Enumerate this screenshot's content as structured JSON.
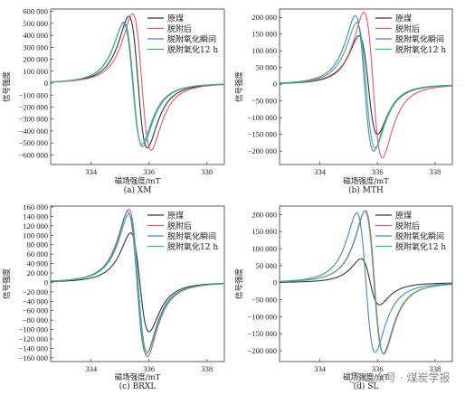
{
  "watermark": "公众号 · 煤炭学报",
  "chart_data": [
    {
      "type": "line",
      "caption": "(a) XM",
      "xlabel": "磁场强度/mT",
      "ylabel": "信号强度",
      "xlim": [
        332.6,
        338.6
      ],
      "ylim": [
        -680000,
        620000
      ],
      "xticks": [
        334,
        336,
        338
      ],
      "yticks": [
        600000,
        500000,
        400000,
        300000,
        200000,
        100000,
        0,
        -100000,
        -200000,
        -300000,
        -400000,
        -500000,
        -600000
      ],
      "ytick_labels": [
        "600 000",
        "500 000",
        "400 000",
        "300 000",
        "200 000",
        "100 000",
        "0",
        "−100 000",
        "−200 000",
        "−300 000",
        "−400 000",
        "−500 000",
        "−600 000"
      ],
      "series": [
        {
          "name": "原煤",
          "color": "#333333",
          "x0": 335.62,
          "peak": 560000,
          "trough": -540000
        },
        {
          "name": "脱附后",
          "color": "#e05a6a",
          "x0": 335.75,
          "peak": 580000,
          "trough": -560000
        },
        {
          "name": "脱附氧化瞬间",
          "color": "#4a84c8",
          "x0": 335.45,
          "peak": 510000,
          "trough": -530000
        },
        {
          "name": "脱附氧化12 h",
          "color": "#3fae8a",
          "x0": 335.43,
          "peak": 500000,
          "trough": -510000
        }
      ],
      "legend": "top-right"
    },
    {
      "type": "line",
      "caption": "(b) MTH",
      "xlabel": "磁场强度/mT",
      "ylabel": "信号强度",
      "xlim": [
        332.6,
        338.6
      ],
      "ylim": [
        -240000,
        225000
      ],
      "xticks": [
        334,
        336,
        338
      ],
      "yticks": [
        200000,
        150000,
        100000,
        50000,
        0,
        -50000,
        -100000,
        -150000,
        -200000
      ],
      "ytick_labels": [
        "200 000",
        "150 000",
        "100 000",
        "50 000",
        "0",
        "−50 000",
        "−100 000",
        "−150 000",
        "−200 000"
      ],
      "series": [
        {
          "name": "原煤",
          "color": "#333333",
          "x0": 335.68,
          "peak": 145000,
          "trough": -150000
        },
        {
          "name": "脱附后",
          "color": "#e05a6a",
          "x0": 335.85,
          "peak": 215000,
          "trough": -220000
        },
        {
          "name": "脱附氧化瞬间",
          "color": "#4a84c8",
          "x0": 335.55,
          "peak": 205000,
          "trough": -200000
        },
        {
          "name": "脱附氧化12 h",
          "color": "#3fae8a",
          "x0": 335.6,
          "peak": 185000,
          "trough": -190000
        }
      ],
      "legend": "top-right"
    },
    {
      "type": "line",
      "caption": "(c) BRXL",
      "xlabel": "磁场强度/mT",
      "ylabel": "信号强度",
      "xlim": [
        332.6,
        338.6
      ],
      "ylim": [
        -168000,
        162000
      ],
      "xticks": [
        334,
        336,
        338
      ],
      "yticks": [
        160000,
        140000,
        120000,
        100000,
        80000,
        60000,
        40000,
        20000,
        0,
        -20000,
        -40000,
        -60000,
        -80000,
        -100000,
        -120000,
        -140000,
        -160000
      ],
      "ytick_labels": [
        "160 000",
        "140 000",
        "120 000",
        "100 000",
        "80 000",
        "60 000",
        "40 000",
        "20 000",
        "0",
        "−20 000",
        "−40 000",
        "−60 000",
        "−80 000",
        "−100 000",
        "−120 000",
        "−140 000",
        "−160 000"
      ],
      "series": [
        {
          "name": "原煤",
          "color": "#333333",
          "x0": 335.68,
          "peak": 105000,
          "trough": -105000
        },
        {
          "name": "脱附后",
          "color": "#e05a6a",
          "x0": 335.62,
          "peak": 155000,
          "trough": -158000
        },
        {
          "name": "脱附氧化瞬间",
          "color": "#4a84c8",
          "x0": 335.58,
          "peak": 150000,
          "trough": -152000
        },
        {
          "name": "脱附氧化12 h",
          "color": "#3fae8a",
          "x0": 335.62,
          "peak": 145000,
          "trough": -148000
        }
      ],
      "legend": "top-right"
    },
    {
      "type": "line",
      "caption": "(d) SL",
      "xlabel": "磁场强度/mT",
      "ylabel": "信号强度",
      "xlim": [
        332.6,
        338.6
      ],
      "ylim": [
        -232000,
        225000
      ],
      "xticks": [
        334,
        336,
        338
      ],
      "yticks": [
        200000,
        150000,
        100000,
        50000,
        0,
        -50000,
        -100000,
        -150000,
        -200000
      ],
      "ytick_labels": [
        "200 000",
        "150 000",
        "100 000",
        "50 000",
        "0",
        "−50 000",
        "−100 000",
        "−150 000",
        "−200 000"
      ],
      "series": [
        {
          "name": "原煤",
          "color": "#333333",
          "x0": 335.75,
          "peak": 70000,
          "trough": -65000
        },
        {
          "name": "脱附后",
          "color": "#e05a6a",
          "x0": 335.9,
          "peak": 212000,
          "trough": -210000
        },
        {
          "name": "脱附氧化瞬间",
          "color": "#4a84c8",
          "x0": 335.6,
          "peak": 205000,
          "trough": -205000
        },
        {
          "name": "脱附氧化12 h",
          "color": "#3fae8a",
          "x0": 335.88,
          "peak": 210000,
          "trough": -208000
        }
      ],
      "legend": "top-right"
    }
  ]
}
